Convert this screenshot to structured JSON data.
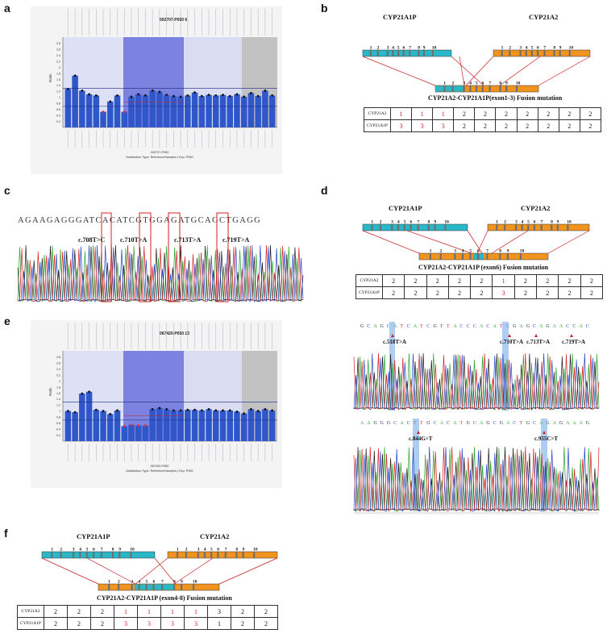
{
  "panels": {
    "a": "a",
    "b": "b",
    "c": "c",
    "d": "d",
    "e": "e",
    "f": "f"
  },
  "mlpa_a": {
    "title": "002707-P050  6",
    "ylabel": "Ratio",
    "xlabel_line1": "002707-P050",
    "xlabel_line2": "Distribution Type: ReferenceSamples | Exp: P050",
    "yticks": [
      "2.8",
      "2.6",
      "2.4",
      "2.2",
      "2",
      "1.8",
      "1.6",
      "1.4",
      "1.2",
      "1",
      "0.8",
      "0.6",
      "0.4",
      "0.2"
    ],
    "zones": [
      "#b9bde8",
      "#5a62d8",
      "#c9ccf0",
      "#b5b5b5"
    ]
  },
  "mlpa_e": {
    "title": "067420-P050  13",
    "ylabel": "Ratio",
    "xlabel_line1": "067420-P050",
    "xlabel_line2": "Distribution Type: ReferenceSamples | Exp: P050",
    "yticks": [
      "2.8",
      "2.6",
      "2.4",
      "2.2",
      "2",
      "1.8",
      "1.6",
      "1.4",
      "1.2",
      "1",
      "0.8",
      "0.6",
      "0.4",
      "0.2"
    ]
  },
  "chart_data": [
    {
      "type": "bar",
      "panel": "a",
      "ylabel": "Ratio",
      "ylim": [
        0,
        3
      ],
      "values": [
        1.28,
        1.72,
        1.22,
        1.1,
        1.06,
        0.52,
        0.86,
        1.06,
        0.52,
        1.02,
        1.1,
        1.06,
        1.22,
        1.18,
        1.08,
        1.04,
        1.02,
        1.06,
        1.16,
        1.04,
        1.08,
        1.06,
        1.08,
        1.04,
        1.1,
        1.02,
        1.14,
        1.04,
        1.22,
        1.06
      ],
      "reference_lines": [
        1.3,
        0.7
      ]
    },
    {
      "type": "bar",
      "panel": "e",
      "ylabel": "Ratio",
      "ylim": [
        0,
        3
      ],
      "values": [
        1.0,
        0.96,
        1.58,
        1.64,
        1.04,
        1.0,
        0.9,
        1.02,
        0.5,
        0.54,
        0.52,
        0.52,
        1.06,
        1.1,
        1.06,
        1.02,
        1.02,
        1.04,
        1.04,
        1.02,
        1.06,
        1.02,
        1.02,
        1.02,
        0.98,
        0.92,
        1.06,
        1.0,
        1.06,
        1.02
      ],
      "reference_lines": [
        1.3,
        0.7
      ]
    }
  ],
  "fusion_b": {
    "gene1": "CYP21A1P",
    "gene2": "CYP21A2",
    "gene1_exons": [
      "1",
      "2",
      "3",
      "4",
      "5",
      "6",
      "7",
      "8",
      "9",
      "10"
    ],
    "gene2_exons": [
      "1",
      "2",
      "3",
      "4",
      "5",
      "6",
      "7",
      "8",
      "9",
      "10"
    ],
    "fusion_exons": [
      "1",
      "2",
      "3",
      "4",
      "5",
      "6",
      "7",
      "8",
      "9",
      "10"
    ],
    "caption": "CYP21A2-CYP21A1P(exon1-3) Fusion mutation",
    "rows": [
      {
        "label": "CYP21A2",
        "values": [
          "1",
          "1",
          "1",
          "2",
          "2",
          "2",
          "2",
          "2",
          "2",
          "2"
        ]
      },
      {
        "label": "CYP21A1P",
        "values": [
          "3",
          "3",
          "3",
          "2",
          "2",
          "2",
          "2",
          "2",
          "2",
          "2"
        ]
      }
    ],
    "red": [
      [
        0,
        1,
        2
      ],
      [
        0,
        1,
        2
      ]
    ]
  },
  "fusion_d": {
    "gene1": "CYP21A1P",
    "gene2": "CYP21A2",
    "gene1_exons": [
      "1",
      "2",
      "3",
      "4",
      "5",
      "6",
      "7",
      "8",
      "9",
      "10"
    ],
    "gene2_exons": [
      "1",
      "2",
      "3",
      "4",
      "5",
      "6",
      "7",
      "8",
      "9",
      "10"
    ],
    "fusion_exons": [
      "1",
      "2",
      "3",
      "4",
      "5",
      "6",
      "7",
      "8",
      "9",
      "10"
    ],
    "caption": "CYP21A2-CYP21A1P (exon6) Fusion mutation",
    "rows": [
      {
        "label": "CYP21A2",
        "values": [
          "2",
          "2",
          "2",
          "2",
          "2",
          "1",
          "2",
          "2",
          "2",
          "2"
        ]
      },
      {
        "label": "CYP21A1P",
        "values": [
          "2",
          "2",
          "2",
          "2",
          "2",
          "3",
          "2",
          "2",
          "2",
          "2"
        ]
      }
    ],
    "red": [
      [
        5
      ],
      [
        5
      ]
    ]
  },
  "fusion_f": {
    "gene1": "CYP21A1P",
    "gene2": "CYP21A2",
    "gene1_exons": [
      "1",
      "2",
      "3",
      "4",
      "5",
      "6",
      "7",
      "8",
      "9",
      "10"
    ],
    "gene2_exons": [
      "1",
      "2",
      "3",
      "4",
      "5",
      "6",
      "7",
      "8",
      "9",
      "10"
    ],
    "fusion_exons": [
      "1",
      "2",
      "3",
      "4",
      "5",
      "6",
      "7",
      "8",
      "9",
      "10"
    ],
    "caption": "CYP21A2-CYP21A1P (exon4-8) Fusion mutation",
    "rows": [
      {
        "label": "CYP21A2",
        "values": [
          "2",
          "2",
          "2",
          "1",
          "1",
          "1",
          "1",
          "3",
          "2",
          "2"
        ]
      },
      {
        "label": "CYP21A1P",
        "values": [
          "2",
          "2",
          "2",
          "3",
          "3",
          "3",
          "3",
          "1",
          "2",
          "2"
        ]
      }
    ],
    "red": [
      [
        3,
        4,
        5,
        6
      ],
      [
        3,
        4,
        5,
        6
      ]
    ]
  },
  "seq_c": {
    "sequence": "AGAAGAGGGATCACATCGTGGAGATGCAGCTGAGG",
    "mutations": [
      "c.708T>C",
      "c.710T>A",
      "c.713T>A",
      "c.719T>A"
    ]
  },
  "seq_e": {
    "top_sequence": "GCAGCATCATCGTTACCCACATCGAGCAGAACCAC",
    "bottom_sequence": "AAGGGCACTTGCACATGCAGCGACTGCAGAGAAAG",
    "mutations_top": [
      "c.518T>A",
      "c.710T>A",
      "c.713T>A",
      "c.719T>A"
    ],
    "mutations_bottom": [
      "c.844G>T",
      "c.955C>T"
    ]
  },
  "colors": {
    "cyan": "#2ab8c8",
    "orange": "#f0931f",
    "bar_blue": "#2f57c9",
    "red": "#d42020",
    "highlight_blue": "#6aa4e8"
  }
}
